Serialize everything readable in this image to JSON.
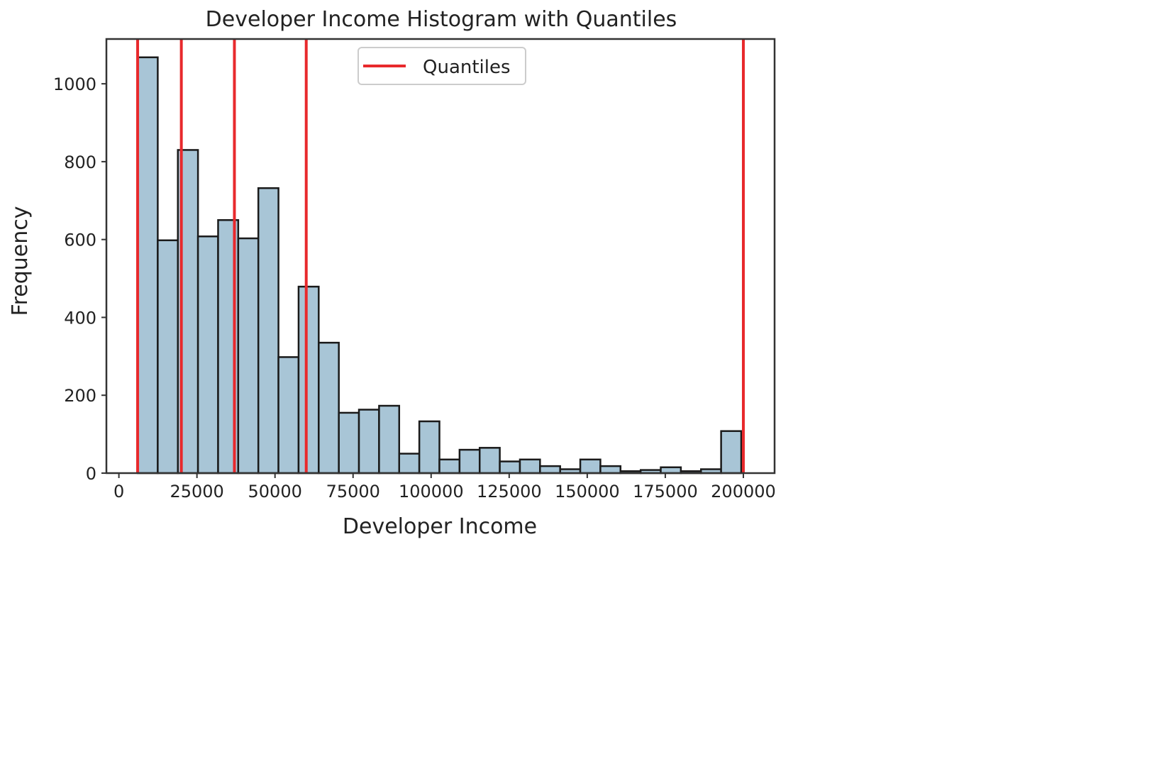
{
  "chart_data": {
    "type": "bar",
    "title": "Developer Income Histogram with Quantiles",
    "xlabel": "Developer Income",
    "ylabel": "Frequency",
    "xlim": [
      -4000,
      210000
    ],
    "ylim": [
      0,
      1115
    ],
    "xticks": [
      0,
      25000,
      50000,
      75000,
      100000,
      125000,
      150000,
      175000,
      200000
    ],
    "xtick_labels": [
      "0",
      "25000",
      "50000",
      "75000",
      "100000",
      "125000",
      "150000",
      "175000",
      "200000"
    ],
    "yticks": [
      0,
      200,
      400,
      600,
      800,
      1000
    ],
    "ytick_labels": [
      "0",
      "200",
      "400",
      "600",
      "800",
      "1000"
    ],
    "bin_width": 6444,
    "bins": [
      {
        "x0": 6000,
        "x1": 12444,
        "count": 1068
      },
      {
        "x0": 12444,
        "x1": 18888,
        "count": 598
      },
      {
        "x0": 18888,
        "x1": 25332,
        "count": 830
      },
      {
        "x0": 25332,
        "x1": 31776,
        "count": 608
      },
      {
        "x0": 31776,
        "x1": 38220,
        "count": 650
      },
      {
        "x0": 38220,
        "x1": 44664,
        "count": 603
      },
      {
        "x0": 44664,
        "x1": 51108,
        "count": 732
      },
      {
        "x0": 51108,
        "x1": 57552,
        "count": 298
      },
      {
        "x0": 57552,
        "x1": 63996,
        "count": 479
      },
      {
        "x0": 63996,
        "x1": 70440,
        "count": 335
      },
      {
        "x0": 70440,
        "x1": 76884,
        "count": 155
      },
      {
        "x0": 76884,
        "x1": 83328,
        "count": 163
      },
      {
        "x0": 83328,
        "x1": 89772,
        "count": 173
      },
      {
        "x0": 89772,
        "x1": 96216,
        "count": 50
      },
      {
        "x0": 96216,
        "x1": 102660,
        "count": 133
      },
      {
        "x0": 102660,
        "x1": 109104,
        "count": 35
      },
      {
        "x0": 109104,
        "x1": 115548,
        "count": 60
      },
      {
        "x0": 115548,
        "x1": 121992,
        "count": 65
      },
      {
        "x0": 121992,
        "x1": 128436,
        "count": 30
      },
      {
        "x0": 128436,
        "x1": 134880,
        "count": 35
      },
      {
        "x0": 134880,
        "x1": 141324,
        "count": 18
      },
      {
        "x0": 141324,
        "x1": 147768,
        "count": 10
      },
      {
        "x0": 147768,
        "x1": 154212,
        "count": 35
      },
      {
        "x0": 154212,
        "x1": 160656,
        "count": 18
      },
      {
        "x0": 160656,
        "x1": 167100,
        "count": 5
      },
      {
        "x0": 167100,
        "x1": 173544,
        "count": 8
      },
      {
        "x0": 173544,
        "x1": 179988,
        "count": 15
      },
      {
        "x0": 179988,
        "x1": 186432,
        "count": 5
      },
      {
        "x0": 186432,
        "x1": 192876,
        "count": 10
      },
      {
        "x0": 192876,
        "x1": 199320,
        "count": 108
      }
    ],
    "quantiles": [
      6000,
      20000,
      37000,
      60000,
      200000
    ],
    "legend": {
      "label": "Quantiles",
      "position": "upper center"
    },
    "grid": false,
    "colors": {
      "bar_fill": "#a8c5d6",
      "bar_edge": "#1a1a1a",
      "quantile": "#e8292c"
    }
  }
}
